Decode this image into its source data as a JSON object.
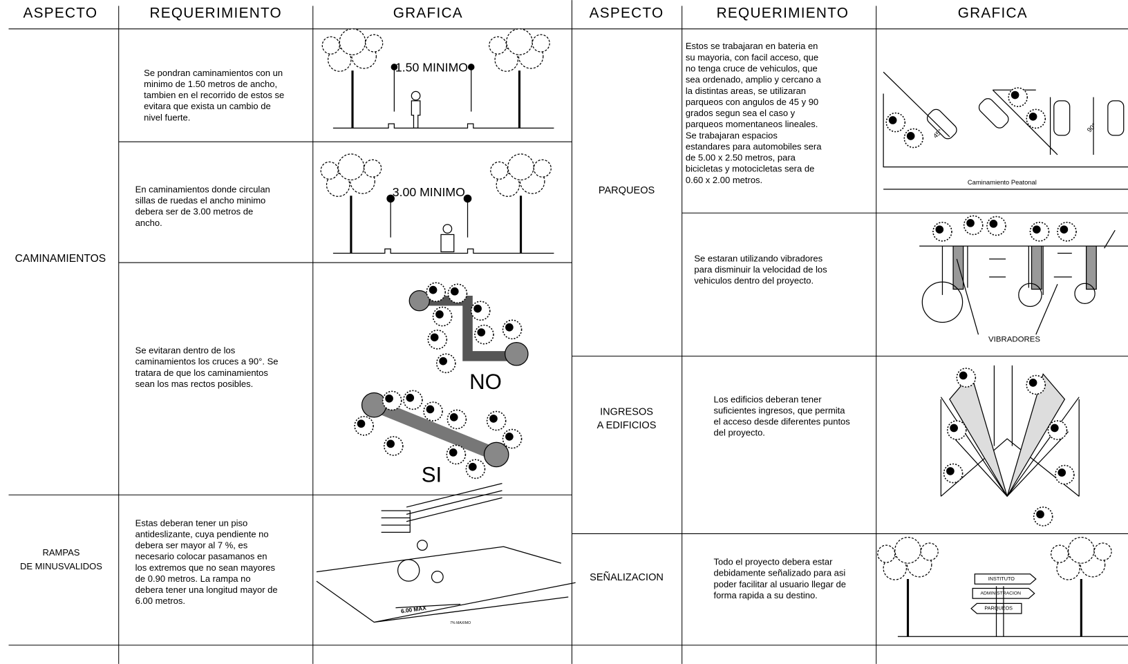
{
  "left_table": {
    "headers": [
      "ASPECTO",
      "REQUERIMIENTO",
      "GRAFICA"
    ],
    "aspects": [
      {
        "lines": [
          "CAMINAMIENTOS"
        ]
      },
      {
        "lines": [
          "RAMPAS",
          "DE MINUSVALIDOS"
        ]
      }
    ],
    "rows": [
      {
        "requirement": [
          "Se pondran caminamientos con un",
          "minimo de 1.50 metros de ancho,",
          "tambien en el recorrido de estos se",
          "evitara que exista un cambio de",
          "nivel fuerte."
        ],
        "graphic_labels": [
          "1.50 MINIMO"
        ]
      },
      {
        "requirement": [
          "En caminamientos donde circulan",
          "sillas de ruedas el ancho minimo",
          "debera ser de 3.00 metros de",
          "ancho."
        ],
        "graphic_labels": [
          "3.00 MINIMO"
        ]
      },
      {
        "requirement": [
          "Se evitaran dentro de los",
          "caminamientos los cruces a 90°. Se",
          "tratara de que los caminamientos",
          "sean los mas rectos posibles."
        ],
        "graphic_labels": [
          "NO",
          "SI"
        ]
      },
      {
        "requirement": [
          "Estas deberan tener un piso",
          "antideslizante, cuya pendiente no",
          "debera ser mayor al 7 %, es",
          "necesario colocar pasamanos en",
          "los extremos que no sean mayores",
          "de 0.90 metros. La rampa no",
          "debera tener una longitud mayor de",
          "6.00 metros."
        ],
        "graphic_labels": [
          "6.00 MAX",
          "7% MAXIMO"
        ]
      }
    ]
  },
  "right_table": {
    "headers": [
      "ASPECTO",
      "REQUERIMIENTO",
      "GRAFICA"
    ],
    "aspects": [
      {
        "lines": [
          "PARQUEOS"
        ]
      },
      {
        "lines": [
          "INGRESOS",
          "A EDIFICIOS"
        ]
      },
      {
        "lines": [
          "SEÑALIZACION"
        ]
      }
    ],
    "rows": [
      {
        "requirement": [
          "Estos se trabajaran en bateria en",
          "su mayoria, con facil acceso, que",
          "no tenga cruce de vehiculos, que",
          "sea ordenado, amplio y cercano a",
          "la distintas areas, se utilizaran",
          "parqueos con angulos de 45 y 90",
          "grados segun sea el caso y",
          "parqueos momentaneos lineales.",
          "Se trabajaran espacios",
          "estandares para automobiles sera",
          "de 5.00 x 2.50 metros, para",
          "bicicletas y motocicletas sera de",
          "0.60 x 2.00 metros."
        ],
        "graphic_labels": [
          "45°",
          "90°",
          "Caminamiento Peatonal"
        ]
      },
      {
        "requirement": [
          "Se estaran utilizando vibradores",
          "para disminuir la velocidad de los",
          "vehiculos dentro del proyecto."
        ],
        "graphic_labels": [
          "VIBRADORES"
        ]
      },
      {
        "requirement": [
          "Los edificios deberan tener",
          "suficientes ingresos, que permita",
          "el acceso desde diferentes puntos",
          "del proyecto."
        ]
      },
      {
        "requirement": [
          "Todo el proyecto debera estar",
          "debidamente señalizado para asi",
          "poder facilitar al usuario llegar de",
          "forma rapida a su destino."
        ],
        "graphic_labels": [
          "INSTITUTO",
          "ADMINISTRACION",
          "PARQUEOS"
        ]
      }
    ]
  }
}
